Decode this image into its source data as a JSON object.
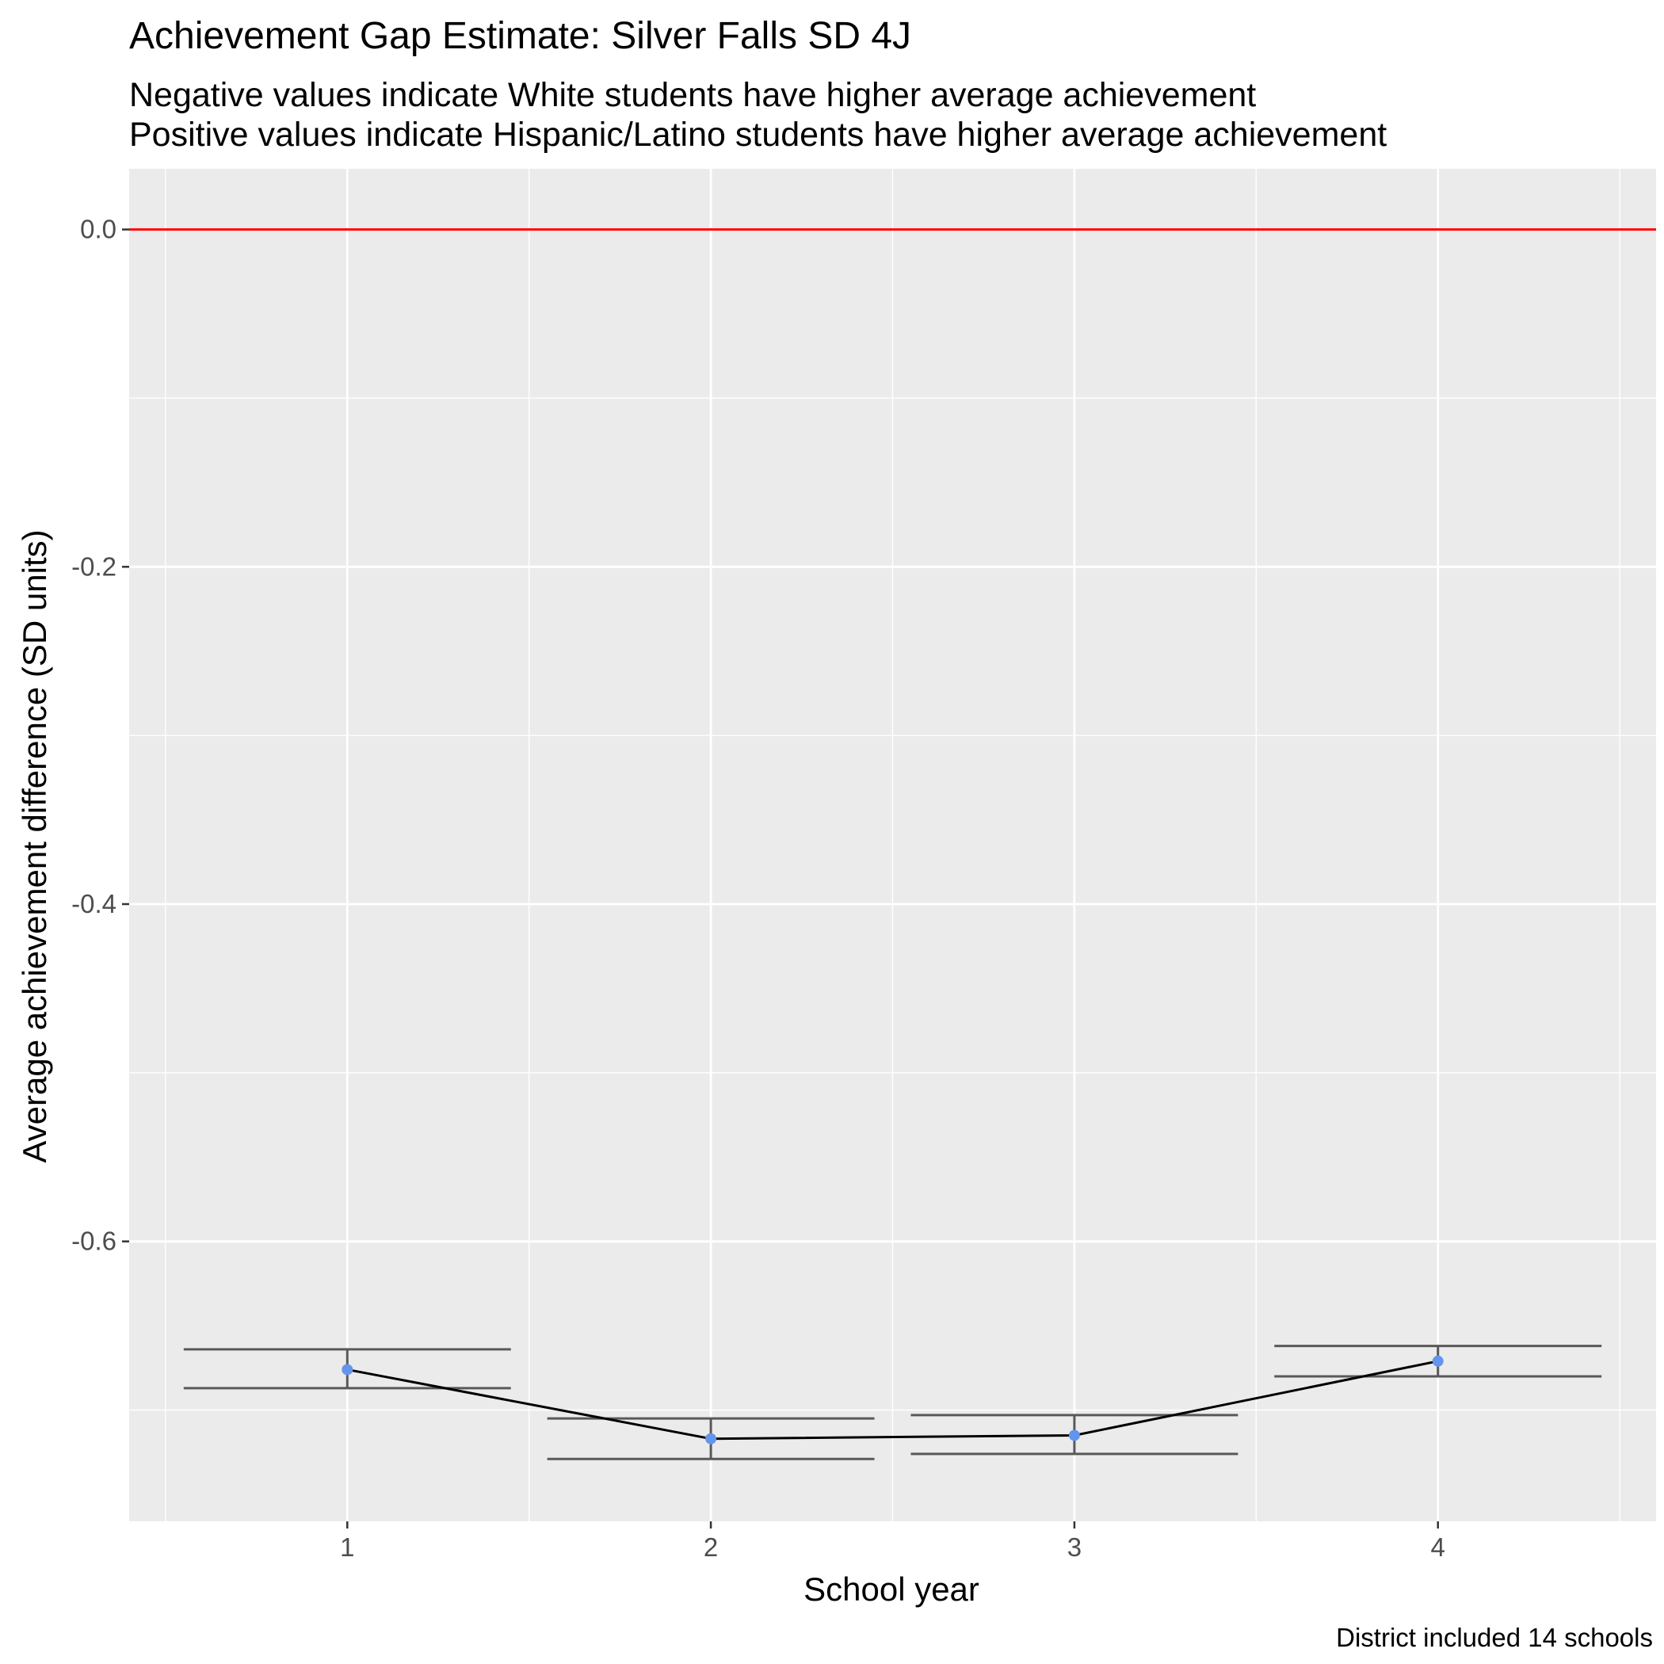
{
  "chart_data": {
    "type": "line",
    "title": "Achievement Gap Estimate: Silver Falls SD 4J",
    "subtitle": [
      "Negative values indicate White students have higher average achievement",
      "Positive values indicate Hispanic/Latino students have higher average achievement"
    ],
    "xlabel": "School year",
    "ylabel": "Average achievement difference (SD units)",
    "caption": "District included 14 schools",
    "x": [
      1,
      2,
      3,
      4
    ],
    "x_tick_labels": [
      "1",
      "2",
      "3",
      "4"
    ],
    "y_ticks": [
      0.0,
      -0.2,
      -0.4,
      -0.6
    ],
    "y_tick_labels": [
      "0.0",
      "-0.2",
      "-0.4",
      "-0.6"
    ],
    "xlim": [
      0.4,
      4.6
    ],
    "ylim": [
      -0.766,
      0.036
    ],
    "grid": true,
    "reference_line": {
      "y": 0.0,
      "color": "#ff0000"
    },
    "series": [
      {
        "values": [
          -0.676,
          -0.717,
          -0.715,
          -0.671
        ],
        "ci_lower": [
          -0.687,
          -0.729,
          -0.726,
          -0.68
        ],
        "ci_upper": [
          -0.664,
          -0.705,
          -0.703,
          -0.662
        ],
        "point_color": "#6495ed",
        "line_color": "#000000",
        "errorbar_color": "#595959"
      }
    ],
    "colors": {
      "panel_background": "#ebebeb",
      "grid": "#ffffff"
    }
  }
}
